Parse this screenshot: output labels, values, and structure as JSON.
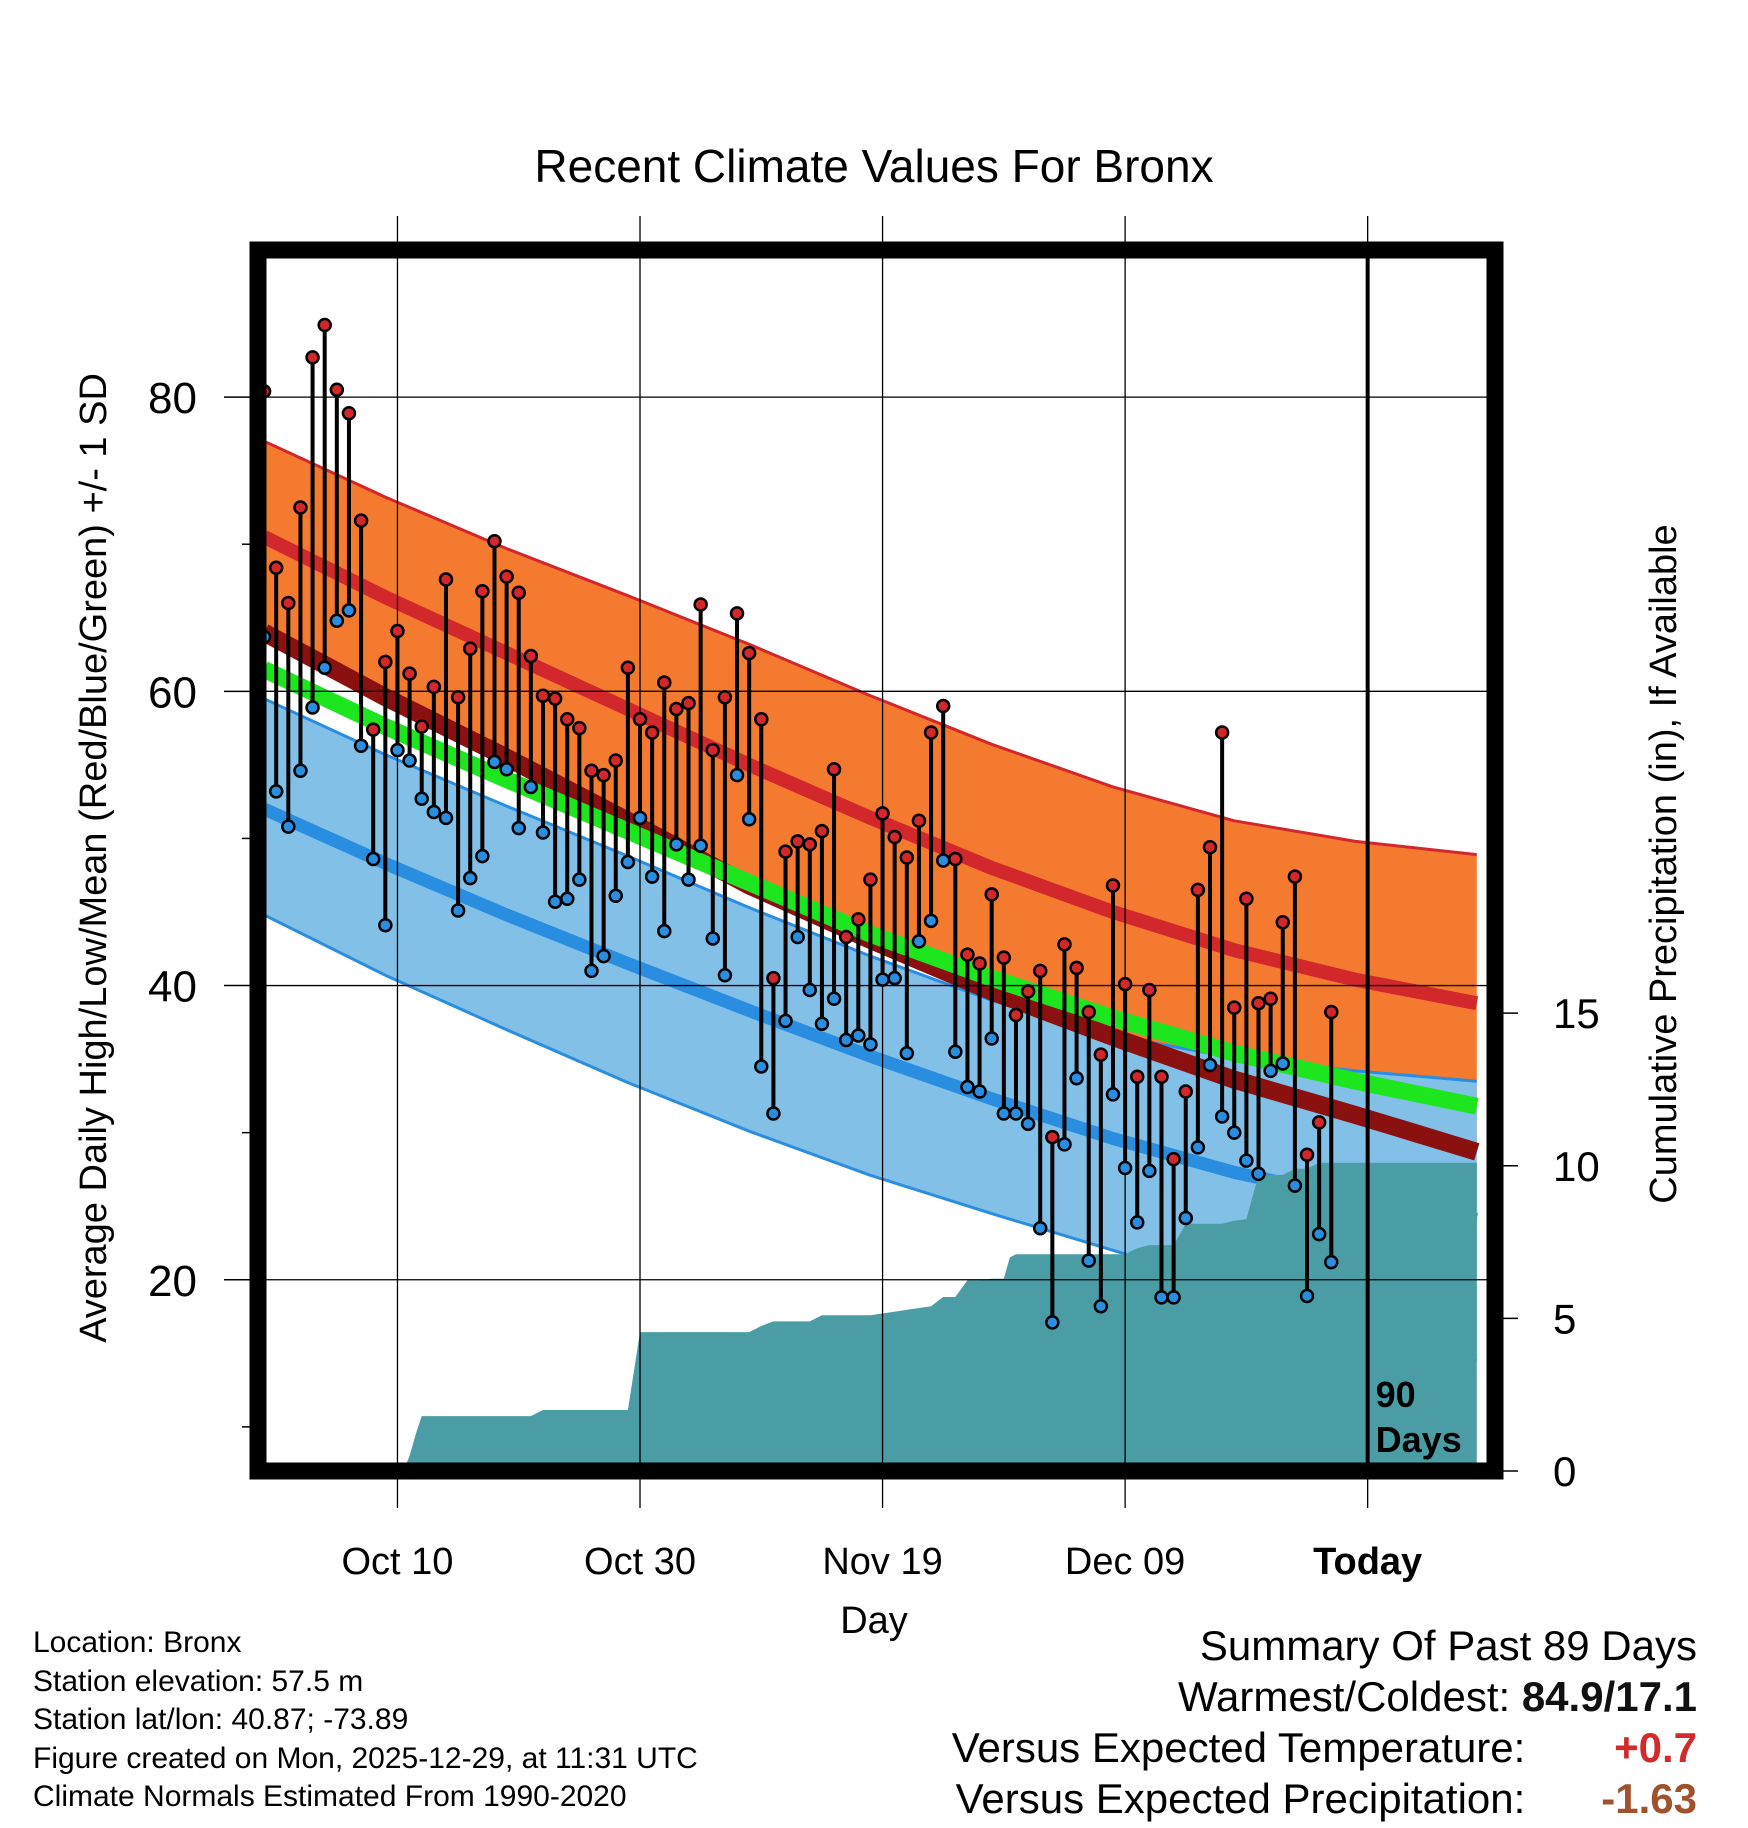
{
  "chart_data": {
    "type": "line",
    "title": "Recent Climate Values For Bronx",
    "xlabel": "Day",
    "ylabel": "Average Daily High/Low/Mean (Red/Blue/Green) +/- 1 SD",
    "y2label": "Cumulative Precipitation (in), If Available",
    "xlim": [
      -0.5,
      101.5
    ],
    "ylim": [
      7,
      90
    ],
    "y2lim": [
      0,
      40
    ],
    "xticks": [
      {
        "day": 11,
        "label": "Oct 10"
      },
      {
        "day": 31,
        "label": "Oct 30"
      },
      {
        "day": 51,
        "label": "Nov 19"
      },
      {
        "day": 71,
        "label": "Dec 09"
      },
      {
        "day": 91,
        "label": "Today"
      }
    ],
    "yticks": [
      20,
      40,
      60,
      80
    ],
    "y2ticks": [
      0,
      5,
      10,
      15
    ],
    "today_marker": {
      "day": 91,
      "label_line1": "90",
      "label_line2": "Days"
    },
    "normals": {
      "day": [
        0,
        10,
        20,
        30,
        40,
        50,
        60,
        70,
        80,
        90,
        100
      ],
      "high_upper": [
        77,
        73.2,
        69.7,
        66.5,
        63.2,
        59.7,
        56.4,
        53.5,
        51.2,
        49.8,
        48.9
      ],
      "high_mean": [
        70.5,
        66.4,
        62.6,
        58.8,
        55.0,
        51.4,
        48.0,
        45.0,
        42.4,
        40.4,
        38.8
      ],
      "high_lower": [
        64,
        59.6,
        55.5,
        51.2,
        46.8,
        43.1,
        39.6,
        36.5,
        33.6,
        31.2,
        28.7
      ],
      "mean": [
        61.5,
        57.6,
        54.0,
        50.5,
        47.0,
        43.5,
        40.5,
        37.8,
        35.4,
        33.5,
        31.8
      ],
      "low_upper": [
        59.5,
        55.7,
        52.2,
        48.8,
        45.3,
        42.0,
        39.0,
        36.6,
        35.1,
        34.2,
        33.5
      ],
      "low_mean": [
        52.0,
        48.3,
        44.8,
        41.5,
        38.3,
        35.2,
        32.3,
        29.6,
        27.3,
        25.5,
        24.1
      ],
      "low_lower": [
        44.8,
        40.7,
        37.0,
        33.4,
        30.1,
        27.1,
        24.5,
        22.0,
        19.5,
        17.0,
        14.5
      ]
    },
    "series": [
      {
        "name": "Daily High",
        "color": "#d2272b",
        "values": [
          80.4,
          68.4,
          66.0,
          72.5,
          82.7,
          84.9,
          80.5,
          78.9,
          71.6,
          57.4,
          62.0,
          64.1,
          61.2,
          57.6,
          60.3,
          67.6,
          59.6,
          62.9,
          66.8,
          70.2,
          67.8,
          66.7,
          62.4,
          59.7,
          59.5,
          58.1,
          57.5,
          54.6,
          54.3,
          55.3,
          61.6,
          58.1,
          57.2,
          60.6,
          58.8,
          59.2,
          65.9,
          56.0,
          59.6,
          65.3,
          62.6,
          58.1,
          40.5,
          49.1,
          49.8,
          49.6,
          50.5,
          54.7,
          43.3,
          44.5,
          47.2,
          51.7,
          50.1,
          48.7,
          51.2,
          57.2,
          59.0,
          48.6,
          42.1,
          41.5,
          46.2,
          41.9,
          38.0,
          39.6,
          41.0,
          29.7,
          42.8,
          41.2,
          38.2,
          35.3,
          46.8,
          40.1,
          33.8,
          39.7,
          33.8,
          28.2,
          32.8,
          46.5,
          49.4,
          57.2,
          38.5,
          45.9,
          38.8,
          39.1,
          44.3,
          47.4,
          28.5,
          30.7,
          38.2
        ]
      },
      {
        "name": "Daily Low",
        "color": "#2a8ee0",
        "values": [
          63.7,
          53.2,
          50.8,
          54.6,
          58.9,
          61.6,
          64.8,
          65.5,
          56.3,
          48.6,
          44.1,
          56.0,
          55.3,
          52.7,
          51.8,
          51.4,
          45.1,
          47.3,
          48.8,
          55.2,
          54.7,
          50.7,
          53.5,
          50.4,
          45.7,
          45.9,
          47.2,
          41.0,
          42.0,
          46.1,
          48.4,
          51.4,
          47.4,
          43.7,
          49.6,
          47.2,
          49.5,
          43.2,
          40.7,
          54.3,
          51.3,
          34.5,
          31.3,
          37.6,
          43.3,
          39.7,
          37.4,
          39.1,
          36.3,
          36.6,
          36.0,
          40.4,
          40.5,
          35.4,
          43.0,
          44.4,
          48.5,
          35.5,
          33.1,
          32.8,
          36.4,
          31.3,
          31.3,
          30.6,
          23.5,
          17.1,
          29.2,
          33.7,
          21.3,
          18.2,
          32.6,
          27.6,
          23.9,
          27.4,
          18.8,
          18.8,
          24.2,
          29.0,
          34.6,
          31.1,
          30.0,
          28.1,
          27.2,
          34.2,
          34.7,
          26.4,
          18.9,
          23.1,
          21.2
        ]
      },
      {
        "name": "Cumulative Precipitation",
        "color": "#4a9ca5",
        "days": [
          0,
          11.5,
          12,
          12.5,
          13,
          14,
          22,
          23,
          29,
          29.5,
          30,
          31,
          40,
          41,
          42,
          45,
          46,
          50,
          55,
          56,
          57,
          58,
          59,
          60,
          61,
          61.5,
          62,
          63,
          64,
          65,
          66,
          67,
          68,
          69,
          70,
          71,
          72,
          73,
          74,
          75,
          76,
          77,
          78,
          79,
          80,
          81,
          82,
          83,
          84,
          85,
          86,
          87,
          88,
          89,
          90,
          91,
          100
        ],
        "values": [
          0,
          0,
          0.5,
          1.2,
          1.8,
          1.8,
          1.8,
          2.0,
          2.0,
          2.0,
          2.0,
          4.55,
          4.55,
          4.75,
          4.9,
          4.9,
          5.1,
          5.1,
          5.4,
          5.7,
          5.7,
          6.25,
          6.25,
          6.3,
          6.3,
          7.0,
          7.1,
          7.1,
          7.1,
          7.1,
          7.1,
          7.1,
          7.1,
          7.1,
          7.1,
          7.1,
          7.3,
          7.4,
          7.4,
          7.4,
          8.1,
          8.1,
          8.1,
          8.1,
          8.2,
          8.25,
          9.7,
          9.7,
          9.7,
          9.9,
          9.9,
          10.1,
          10.1,
          10.1,
          10.1,
          10.1,
          10.1
        ]
      }
    ]
  },
  "info": {
    "location": "Location: Bronx",
    "elevation": "Station elevation: 57.5 m",
    "latlon": "Station lat/lon: 40.87; -73.89",
    "created": "Figure created on Mon, 2025-12-29, at 11:31 UTC",
    "normals": "Climate Normals Estimated From 1990-2020"
  },
  "summary": {
    "title": "Summary Of Past 89 Days",
    "warmest_label": "Warmest/Coldest:",
    "warmest_value": "84.9/17.1",
    "temp_label": "Versus Expected Temperature:",
    "temp_value": "+0.7",
    "precip_label": "Versus Expected Precipitation:",
    "precip_value": "-1.63"
  }
}
